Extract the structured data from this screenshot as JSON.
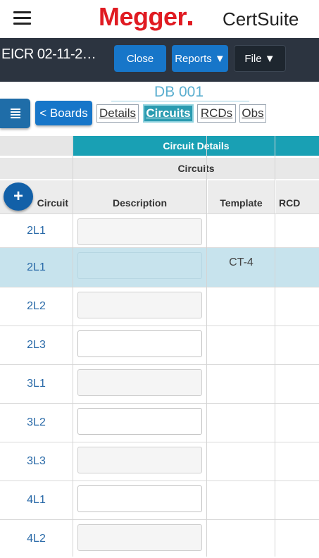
{
  "brand": {
    "logo_text": "Megger",
    "product": "CertSuite",
    "logo_color": "#e01b22"
  },
  "titlebar": {
    "doc_title": "EICR 02-11-2…",
    "close_label": "Close",
    "reports_label": "Reports ▼",
    "file_label": "File ▼"
  },
  "board": {
    "title": "DB 001"
  },
  "nav": {
    "boards_label": "< Boards",
    "tabs": [
      "Details",
      "Circuits",
      "RCDs",
      "Obs"
    ],
    "active_tab": "Circuits"
  },
  "grid": {
    "group_header": "Circuit Details",
    "sub_header": "Circuits",
    "add_label": "+",
    "columns": [
      "Circuit",
      "Description",
      "Template",
      "RCD"
    ],
    "rows": [
      {
        "ref": "2L1",
        "template": "",
        "selected": false
      },
      {
        "ref": "2L1",
        "template": "CT-4",
        "selected": true
      },
      {
        "ref": "2L2",
        "template": "",
        "selected": false
      },
      {
        "ref": "2L3",
        "template": "",
        "selected": false
      },
      {
        "ref": "3L1",
        "template": "",
        "selected": false
      },
      {
        "ref": "3L2",
        "template": "",
        "selected": false
      },
      {
        "ref": "3L3",
        "template": "",
        "selected": false
      },
      {
        "ref": "4L1",
        "template": "",
        "selected": false
      },
      {
        "ref": "4L2",
        "template": "",
        "selected": false
      }
    ]
  },
  "colors": {
    "accent": "#19a0b4",
    "primary_button": "#1776c9",
    "title_bar": "#2c3440",
    "selected_row": "#c7e3ed"
  }
}
